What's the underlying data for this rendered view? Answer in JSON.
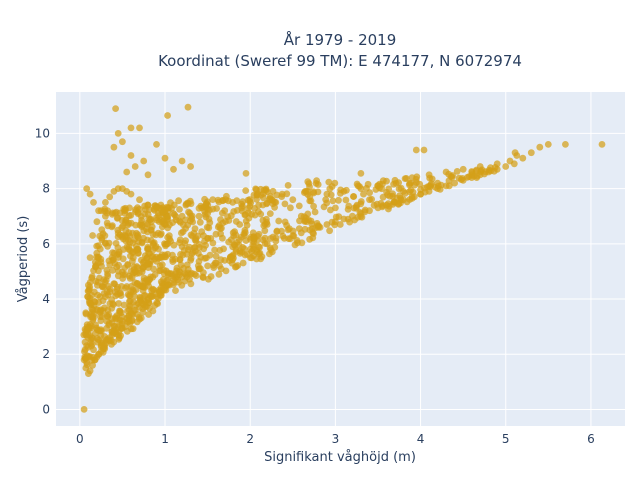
{
  "chart_data": {
    "type": "scatter",
    "title": "År 1979 - 2019",
    "subtitle": "Koordinat (Sweref 99 TM): E 474177, N 6072974",
    "xlabel": "Signifikant våghöjd (m)",
    "ylabel": "Vågperiod (s)",
    "xlim": [
      -0.28,
      6.4
    ],
    "ylim": [
      -0.6,
      11.5
    ],
    "x_ticks": [
      0,
      1,
      2,
      3,
      4,
      5,
      6
    ],
    "y_ticks": [
      0,
      2,
      4,
      6,
      8,
      10
    ],
    "x_tick_labels": [
      "0",
      "1",
      "2",
      "3",
      "4",
      "5",
      "6"
    ],
    "y_tick_labels": [
      "0",
      "2",
      "4",
      "6",
      "8",
      "10"
    ],
    "grid": true,
    "legend": "none",
    "point_color": "#D4A017",
    "plot_background": "#E5ECF6",
    "series": [
      {
        "x": [
          0.05,
          0.07,
          0.1,
          0.12,
          0.15,
          0.18,
          0.2,
          0.22,
          0.25,
          0.28,
          0.3,
          0.33,
          0.35,
          0.38,
          0.4,
          0.45,
          0.5,
          0.55,
          0.6,
          0.65,
          0.7,
          0.75,
          0.8,
          0.85,
          0.9,
          0.95,
          1.0,
          1.05,
          1.1,
          1.15,
          1.2,
          1.3,
          1.4,
          1.5,
          1.6,
          1.7,
          1.8,
          1.9,
          2.0,
          2.1,
          2.2,
          2.3,
          2.4,
          2.5,
          2.6,
          2.7,
          2.8,
          2.9,
          3.0,
          3.1,
          3.2,
          3.3,
          3.4,
          3.5,
          3.6,
          3.7,
          3.8,
          3.9,
          4.0,
          4.1,
          4.2,
          4.3,
          4.4,
          4.5,
          4.6,
          4.7,
          4.8,
          4.9,
          5.0,
          5.05,
          5.1,
          5.2,
          5.3,
          5.4,
          5.5,
          5.7,
          6.13,
          0.07,
          0.1,
          0.12,
          0.15,
          0.2,
          0.25,
          0.3,
          0.35,
          0.4,
          0.45,
          0.5,
          0.55,
          0.6,
          0.7,
          0.8,
          0.9,
          1.0,
          1.1,
          1.2,
          1.3,
          1.4,
          1.5,
          1.7,
          1.9,
          2.1,
          2.3,
          2.5,
          2.7,
          2.9,
          3.1,
          3.3,
          3.5,
          3.7,
          3.9,
          4.1,
          4.3,
          4.5,
          4.7,
          4.9,
          0.4,
          0.45,
          0.5,
          0.55,
          0.6,
          0.65,
          0.7,
          0.75,
          0.8,
          0.9,
          1.0,
          1.1,
          1.2,
          1.3,
          0.6,
          0.8,
          1.0,
          1.2,
          1.5,
          1.8,
          2.2,
          2.6,
          3.0,
          3.4,
          3.8,
          4.2,
          4.6,
          0.42,
          1.27,
          1.03,
          0.6,
          1.95,
          3.3,
          3.95,
          4.04,
          5.11,
          5.13,
          0.05,
          0.08,
          0.12,
          0.16,
          0.22,
          0.3
        ],
        "y": [
          1.8,
          1.5,
          1.3,
          1.4,
          1.6,
          1.8,
          1.9,
          2.0,
          2.1,
          2.3,
          2.4,
          2.5,
          2.6,
          2.7,
          2.8,
          3.0,
          3.2,
          3.3,
          3.5,
          3.6,
          3.7,
          3.8,
          4.0,
          4.1,
          4.2,
          4.3,
          4.4,
          4.5,
          4.6,
          4.7,
          4.8,
          4.9,
          5.1,
          5.2,
          5.3,
          5.4,
          5.6,
          5.7,
          5.8,
          5.9,
          6.0,
          6.1,
          6.2,
          6.3,
          6.4,
          6.5,
          6.6,
          6.7,
          6.8,
          6.9,
          7.0,
          7.1,
          7.2,
          7.3,
          7.4,
          7.5,
          7.6,
          7.7,
          7.8,
          7.9,
          8.0,
          8.1,
          8.2,
          8.3,
          8.4,
          8.5,
          8.6,
          8.7,
          8.8,
          9.0,
          8.9,
          9.1,
          9.3,
          9.5,
          9.6,
          9.6,
          9.6,
          3.5,
          4.5,
          5.5,
          6.3,
          6.8,
          7.2,
          7.5,
          7.7,
          7.9,
          8.0,
          8.0,
          7.9,
          7.8,
          7.6,
          7.4,
          7.3,
          7.2,
          7.1,
          7.0,
          7.0,
          7.0,
          7.1,
          7.2,
          7.3,
          7.4,
          7.5,
          7.6,
          7.7,
          7.8,
          7.9,
          8.0,
          8.1,
          8.3,
          8.4,
          8.5,
          8.6,
          8.7,
          8.8,
          8.9,
          9.5,
          10.0,
          9.7,
          8.6,
          9.2,
          8.8,
          10.2,
          9.0,
          8.5,
          9.6,
          9.1,
          8.7,
          9.0,
          8.8,
          5.0,
          5.3,
          5.6,
          5.9,
          6.2,
          6.4,
          6.7,
          7.0,
          7.3,
          7.6,
          7.9,
          8.2,
          8.5,
          10.9,
          10.95,
          10.65,
          10.2,
          8.55,
          8.55,
          9.4,
          9.4,
          9.3,
          9.2,
          0.0,
          8.0,
          7.8,
          7.5,
          7.2,
          7.0
        ]
      }
    ]
  }
}
